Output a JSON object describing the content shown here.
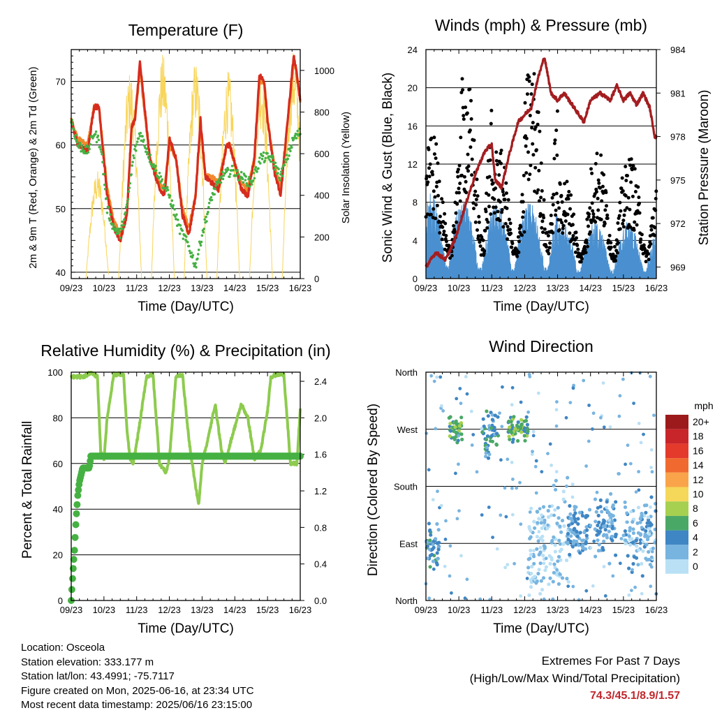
{
  "chart_data": [
    {
      "id": "temperature",
      "type": "line",
      "title": "Temperature (F)",
      "xlabel": "Time (Day/UTC)",
      "ylabel": "2m & 9m T (Red, Orange) & 2m Td (Green)",
      "y2label": "Solar Insolation (Yellow)",
      "x_ticks": [
        "09/23",
        "10/23",
        "11/23",
        "12/23",
        "13/23",
        "14/23",
        "15/23",
        "16/23"
      ],
      "xlim": [
        0,
        7
      ],
      "ylim": [
        39,
        75
      ],
      "y_ticks": [
        40,
        50,
        60,
        70
      ],
      "y2lim": [
        0,
        1100
      ],
      "y2_ticks": [
        0,
        200,
        400,
        600,
        800,
        1000
      ],
      "series": [
        {
          "name": "2m T",
          "color": "#d62c1e",
          "x": [
            0,
            0.2,
            0.5,
            0.7,
            0.85,
            1.1,
            1.3,
            1.5,
            1.7,
            1.85,
            1.95,
            2.1,
            2.4,
            2.7,
            2.85,
            3.0,
            3.2,
            3.4,
            3.6,
            3.8,
            3.95,
            4.1,
            4.3,
            4.5,
            4.75,
            4.85,
            5.0,
            5.2,
            5.4,
            5.6,
            5.75,
            5.9,
            6.0,
            6.2,
            6.4,
            6.6,
            6.8,
            6.9,
            7.0
          ],
          "y": [
            64,
            60,
            59,
            66,
            66,
            52,
            47,
            45,
            49,
            63,
            64,
            73,
            58,
            53,
            52,
            61,
            58,
            49,
            46,
            52,
            64,
            55,
            54,
            53,
            60,
            60,
            57,
            53,
            52,
            58,
            71,
            70,
            64,
            56,
            52,
            63,
            74,
            71,
            67
          ]
        },
        {
          "name": "9m T",
          "color": "#f08a2c",
          "x": [
            0,
            0.2,
            0.5,
            0.7,
            0.85,
            1.1,
            1.3,
            1.5,
            1.7,
            1.85,
            1.95,
            2.1,
            2.4,
            2.7,
            2.85,
            3.0,
            3.2,
            3.4,
            3.6,
            3.8,
            3.95,
            4.1,
            4.3,
            4.5,
            4.75,
            4.85,
            5.0,
            5.2,
            5.4,
            5.6,
            5.75,
            5.9,
            6.0,
            6.2,
            6.4,
            6.6,
            6.8,
            6.9,
            7.0
          ],
          "y": [
            64,
            61,
            60,
            66,
            66,
            53,
            48,
            46,
            49,
            63,
            64,
            72,
            58,
            54,
            53,
            60,
            58,
            50,
            47,
            52,
            63,
            55,
            55,
            54,
            60,
            60,
            57,
            54,
            53,
            58,
            70,
            70,
            64,
            57,
            53,
            63,
            73,
            71,
            67
          ]
        },
        {
          "name": "2m Td",
          "color": "#46b143",
          "x": [
            0,
            0.2,
            0.5,
            0.7,
            0.9,
            1.1,
            1.3,
            1.5,
            1.7,
            1.9,
            2.1,
            2.4,
            2.7,
            3.0,
            3.3,
            3.6,
            3.8,
            4.0,
            4.3,
            4.6,
            4.9,
            5.2,
            5.5,
            5.8,
            6.1,
            6.4,
            6.6,
            6.8,
            7.0
          ],
          "y": [
            64,
            60,
            59,
            62,
            60,
            50,
            47,
            46,
            50,
            58,
            62,
            58,
            55,
            52,
            47,
            44,
            41,
            46,
            52,
            55,
            56,
            55,
            54,
            58,
            58,
            55,
            58,
            61,
            62
          ]
        },
        {
          "name": "Solar Insolation",
          "color": "#f8d55a",
          "axis": "y2",
          "daily_peak": [
            520,
            1000,
            1080,
            1050,
            1000,
            1020,
            1100
          ]
        }
      ]
    },
    {
      "id": "winds",
      "type": "scatter",
      "title": "Winds (mph) & Pressure (mb)",
      "xlabel": "Time (Day/UTC)",
      "ylabel": "Sonic Wind & Gust (Blue, Black)",
      "y2label": "Station Pressure (Maroon)",
      "x_ticks": [
        "09/23",
        "10/23",
        "11/23",
        "12/23",
        "13/23",
        "14/23",
        "15/23",
        "16/23"
      ],
      "xlim": [
        0,
        7
      ],
      "ylim": [
        0,
        24
      ],
      "y_ticks": [
        0,
        4,
        8,
        12,
        16,
        20,
        24
      ],
      "y2lim": [
        968.2,
        984
      ],
      "y2_ticks": [
        969,
        972,
        975,
        978,
        981,
        984
      ],
      "series": [
        {
          "name": "Sonic Wind",
          "color": "#4a90d0",
          "daily_peak": [
            9,
            8,
            8,
            8,
            6,
            6,
            6,
            6
          ]
        },
        {
          "name": "Gust",
          "color": "#000000",
          "daily_peak": [
            14,
            21,
            13,
            22,
            10,
            13,
            12,
            11
          ]
        },
        {
          "name": "Station Pressure",
          "color": "#a31d20",
          "x": [
            0,
            0.3,
            0.6,
            0.9,
            1.1,
            1.3,
            1.6,
            1.8,
            2.0,
            2.1,
            2.3,
            2.5,
            2.8,
            3.0,
            3.2,
            3.4,
            3.6,
            3.8,
            4.0,
            4.2,
            4.5,
            4.8,
            5.0,
            5.3,
            5.6,
            5.8,
            6.0,
            6.2,
            6.4,
            6.6,
            6.8,
            6.95,
            7.0
          ],
          "y": [
            969,
            970,
            969.5,
            971,
            972.5,
            974,
            976,
            977,
            977.5,
            975,
            974.5,
            976.5,
            979,
            979.5,
            980,
            982,
            983.5,
            981,
            980.5,
            981,
            980,
            979,
            980.5,
            981,
            980.5,
            981.5,
            980.5,
            981,
            980.2,
            981,
            980,
            978,
            978
          ]
        }
      ]
    },
    {
      "id": "humidity",
      "type": "line",
      "title": "Relative Humidity (%) & Precipitation (in)",
      "xlabel": "Time (Day/UTC)",
      "ylabel": "Percent & Total Rainfall",
      "x_ticks": [
        "09/23",
        "10/23",
        "11/23",
        "12/23",
        "13/23",
        "14/23",
        "15/23",
        "16/23"
      ],
      "xlim": [
        0,
        7
      ],
      "ylim": [
        0,
        100
      ],
      "y_ticks": [
        0,
        20,
        40,
        60,
        80,
        100
      ],
      "y2lim": [
        0,
        2.5
      ],
      "y2_ticks": [
        "0.0",
        "0.4",
        "0.8",
        "1.2",
        "1.6",
        "2.0",
        "2.4"
      ],
      "series": [
        {
          "name": "Relative Humidity",
          "color": "#8dcb4e",
          "x": [
            0,
            0.4,
            0.6,
            0.8,
            0.9,
            1.0,
            1.1,
            1.3,
            1.6,
            1.7,
            1.8,
            1.9,
            2.1,
            2.3,
            2.5,
            2.7,
            2.9,
            3.0,
            3.2,
            3.4,
            3.6,
            3.8,
            3.9,
            4.0,
            4.2,
            4.4,
            4.6,
            4.7,
            4.9,
            5.2,
            5.4,
            5.6,
            5.8,
            6.0,
            6.1,
            6.3,
            6.5,
            6.7,
            6.9,
            7.0
          ],
          "y": [
            98,
            98,
            100,
            98,
            65,
            62,
            80,
            99,
            99,
            75,
            62,
            60,
            78,
            98,
            99,
            60,
            56,
            62,
            98,
            99,
            70,
            50,
            42,
            60,
            72,
            86,
            65,
            60,
            71,
            86,
            80,
            62,
            66,
            83,
            98,
            99,
            99,
            60,
            60,
            84
          ]
        },
        {
          "name": "Total Rainfall",
          "color": "#46b143",
          "axis": "y2",
          "x": [
            0,
            0.05,
            0.1,
            0.15,
            0.2,
            0.25,
            0.35,
            0.45,
            0.55,
            0.6,
            0.7,
            7.0
          ],
          "y": [
            0,
            0.3,
            0.55,
            0.9,
            1.15,
            1.3,
            1.45,
            1.45,
            1.45,
            1.58,
            1.58,
            1.58
          ]
        }
      ]
    },
    {
      "id": "wind_direction",
      "type": "scatter",
      "title": "Wind Direction",
      "xlabel": "Time (Day/UTC)",
      "ylabel": "Direction (Colored By Speed)",
      "x_ticks": [
        "09/23",
        "10/23",
        "11/23",
        "12/23",
        "13/23",
        "14/23",
        "15/23",
        "16/23"
      ],
      "xlim": [
        0,
        7
      ],
      "y_ticks": [
        "North",
        "East",
        "South",
        "West",
        "North"
      ],
      "ylim": [
        0,
        360
      ],
      "legend": {
        "title": "mph",
        "labels": [
          "20+",
          "18",
          "16",
          "14",
          "12",
          "10",
          "8",
          "6",
          "4",
          "2",
          "0"
        ],
        "colors": [
          "#9c1a1c",
          "#c8252a",
          "#e33a2c",
          "#f06a30",
          "#f9a44a",
          "#f5d75a",
          "#a6d050",
          "#4aa866",
          "#3f86c4",
          "#78b4e0",
          "#b9e0f5"
        ],
        "position": "right"
      },
      "series": [
        {
          "name": "Direction",
          "clusters": [
            {
              "x_range": [
                0,
                0.4
              ],
              "dir_center": 90,
              "spread": 25,
              "speed": 4
            },
            {
              "x_range": [
                0.7,
                1.1
              ],
              "dir_center": 270,
              "spread": 15,
              "speed": 6
            },
            {
              "x_range": [
                1.7,
                2.2
              ],
              "dir_center": 260,
              "spread": 25,
              "speed": 4
            },
            {
              "x_range": [
                2.5,
                3.1
              ],
              "dir_center": 270,
              "spread": 15,
              "speed": 6
            },
            {
              "x_range": [
                3.1,
                4.4
              ],
              "dir_center": 90,
              "spread": 70,
              "speed": 1
            },
            {
              "x_range": [
                4.3,
                5.0
              ],
              "dir_center": 110,
              "spread": 30,
              "speed": 3
            },
            {
              "x_range": [
                5.1,
                5.8
              ],
              "dir_center": 120,
              "spread": 40,
              "speed": 3
            },
            {
              "x_range": [
                6.0,
                7.0
              ],
              "dir_center": 100,
              "spread": 40,
              "speed": 2
            }
          ]
        }
      ]
    }
  ],
  "info": {
    "location": "Location: Osceola",
    "elevation": "Station elevation: 333.177 m",
    "latlon": "Station lat/lon: 43.4991; -75.7117",
    "created": "Figure created on Mon, 2025-06-16, at 23:34 UTC",
    "recent": "Most recent data timestamp: 2025/06/16 23:15:00"
  },
  "extremes": {
    "title": "Extremes For Past 7 Days",
    "subtitle": "(High/Low/Max Wind/Total Precipitation)",
    "values": "74.3/45.1/8.9/1.57"
  }
}
